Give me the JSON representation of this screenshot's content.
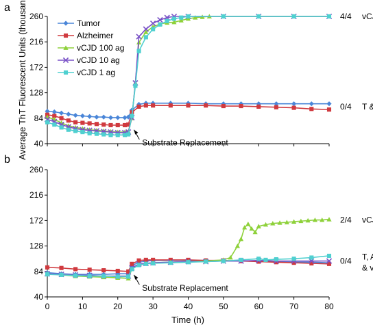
{
  "chart_data": [
    {
      "panel": "a",
      "type": "line",
      "ylabel": "Average ThT Fluorescent Units (thousands)",
      "xlabel": "",
      "xlim": [
        0,
        80
      ],
      "ylim": [
        40,
        260
      ],
      "xticks": [],
      "yticks": [
        40,
        84,
        128,
        172,
        216,
        260
      ],
      "grid": false,
      "legend": "top-left",
      "annotation": "Substrate Replacement",
      "annotation_x": 24,
      "right_labels": [
        {
          "text": "4/4",
          "group": "vCJD",
          "y": 260
        },
        {
          "text": "0/4",
          "group": "T & AD",
          "y": 104
        }
      ],
      "series": [
        {
          "name": "Tumor",
          "color": "#4a86d8",
          "marker": "diamond",
          "points": [
            [
              0,
              96
            ],
            [
              2,
              95
            ],
            [
              4,
              93
            ],
            [
              6,
              91
            ],
            [
              8,
              89
            ],
            [
              10,
              88
            ],
            [
              12,
              87
            ],
            [
              14,
              86
            ],
            [
              16,
              86
            ],
            [
              18,
              85
            ],
            [
              20,
              85
            ],
            [
              22,
              85
            ],
            [
              23,
              86
            ],
            [
              24,
              98
            ],
            [
              26,
              108
            ],
            [
              28,
              110
            ],
            [
              30,
              110
            ],
            [
              35,
              110
            ],
            [
              40,
              110
            ],
            [
              45,
              109
            ],
            [
              50,
              109
            ],
            [
              55,
              109
            ],
            [
              60,
              109
            ],
            [
              65,
              109
            ],
            [
              70,
              109
            ],
            [
              75,
              109
            ],
            [
              80,
              109
            ]
          ]
        },
        {
          "name": "Alzheimer",
          "color": "#d03a3f",
          "marker": "square",
          "points": [
            [
              0,
              90
            ],
            [
              2,
              88
            ],
            [
              4,
              84
            ],
            [
              6,
              80
            ],
            [
              8,
              77
            ],
            [
              10,
              76
            ],
            [
              12,
              75
            ],
            [
              14,
              74
            ],
            [
              16,
              73
            ],
            [
              18,
              72
            ],
            [
              20,
              72
            ],
            [
              22,
              72
            ],
            [
              23,
              73
            ],
            [
              24,
              94
            ],
            [
              26,
              104
            ],
            [
              28,
              106
            ],
            [
              30,
              106
            ],
            [
              35,
              106
            ],
            [
              40,
              106
            ],
            [
              45,
              106
            ],
            [
              50,
              105
            ],
            [
              55,
              105
            ],
            [
              60,
              104
            ],
            [
              65,
              103
            ],
            [
              70,
              102
            ],
            [
              75,
              100
            ],
            [
              80,
              99
            ]
          ]
        },
        {
          "name": "vCJD 100 ag",
          "color": "#8ed13a",
          "marker": "triangle",
          "points": [
            [
              0,
              86
            ],
            [
              2,
              82
            ],
            [
              4,
              76
            ],
            [
              6,
              71
            ],
            [
              8,
              68
            ],
            [
              10,
              66
            ],
            [
              12,
              64
            ],
            [
              14,
              63
            ],
            [
              16,
              62
            ],
            [
              18,
              61
            ],
            [
              20,
              60
            ],
            [
              22,
              60
            ],
            [
              23,
              61
            ],
            [
              24,
              84
            ],
            [
              25,
              145
            ],
            [
              26,
              215
            ],
            [
              28,
              233
            ],
            [
              30,
              242
            ],
            [
              32,
              247
            ],
            [
              34,
              249
            ],
            [
              36,
              250
            ],
            [
              38,
              253
            ],
            [
              40,
              256
            ],
            [
              42,
              258
            ],
            [
              44,
              259
            ],
            [
              46,
              260
            ],
            [
              50,
              260
            ],
            [
              60,
              260
            ],
            [
              70,
              260
            ],
            [
              80,
              260
            ]
          ]
        },
        {
          "name": "vCJD 10 ag",
          "color": "#7a52c7",
          "marker": "x",
          "points": [
            [
              0,
              82
            ],
            [
              2,
              78
            ],
            [
              4,
              73
            ],
            [
              6,
              69
            ],
            [
              8,
              66
            ],
            [
              10,
              64
            ],
            [
              12,
              63
            ],
            [
              14,
              62
            ],
            [
              16,
              61
            ],
            [
              18,
              60
            ],
            [
              20,
              59
            ],
            [
              22,
              59
            ],
            [
              23,
              60
            ],
            [
              24,
              85
            ],
            [
              25,
              145
            ],
            [
              26,
              225
            ],
            [
              28,
              238
            ],
            [
              30,
              248
            ],
            [
              32,
              254
            ],
            [
              34,
              258
            ],
            [
              36,
              260
            ],
            [
              40,
              260
            ],
            [
              50,
              260
            ],
            [
              60,
              260
            ],
            [
              70,
              260
            ],
            [
              80,
              260
            ]
          ]
        },
        {
          "name": "vCJD 1 ag",
          "color": "#4fd0d0",
          "marker": "square",
          "points": [
            [
              0,
              77
            ],
            [
              2,
              73
            ],
            [
              4,
              68
            ],
            [
              6,
              64
            ],
            [
              8,
              62
            ],
            [
              10,
              60
            ],
            [
              12,
              58
            ],
            [
              14,
              57
            ],
            [
              16,
              56
            ],
            [
              18,
              55
            ],
            [
              20,
              55
            ],
            [
              22,
              55
            ],
            [
              23,
              56
            ],
            [
              24,
              88
            ],
            [
              25,
              140
            ],
            [
              26,
              200
            ],
            [
              28,
              224
            ],
            [
              30,
              238
            ],
            [
              32,
              246
            ],
            [
              34,
              252
            ],
            [
              36,
              256
            ],
            [
              38,
              258
            ],
            [
              40,
              260
            ],
            [
              50,
              260
            ],
            [
              60,
              260
            ],
            [
              70,
              260
            ],
            [
              80,
              260
            ]
          ]
        }
      ]
    },
    {
      "panel": "b",
      "type": "line",
      "xlabel": "Time (h)",
      "ylabel": "",
      "xlim": [
        0,
        80
      ],
      "ylim": [
        40,
        260
      ],
      "xticks": [
        0,
        10,
        20,
        30,
        40,
        50,
        60,
        70,
        80
      ],
      "yticks": [
        40,
        84,
        128,
        172,
        216,
        260
      ],
      "grid": false,
      "annotation": "Substrate Replacement",
      "annotation_x": 24,
      "right_labels": [
        {
          "text": "2/4",
          "group": "vCJD",
          "y": 173
        },
        {
          "text": "0/4",
          "group": "T, AD, & vCJD",
          "y": 102
        }
      ],
      "series": [
        {
          "name": "Tumor",
          "color": "#4a86d8",
          "marker": "diamond",
          "points": [
            [
              0,
              82
            ],
            [
              4,
              80
            ],
            [
              8,
              79
            ],
            [
              12,
              79
            ],
            [
              16,
              79
            ],
            [
              20,
              80
            ],
            [
              23,
              80
            ],
            [
              24,
              94
            ],
            [
              26,
              100
            ],
            [
              28,
              102
            ],
            [
              30,
              103
            ],
            [
              35,
              103
            ],
            [
              40,
              103
            ],
            [
              45,
              103
            ],
            [
              50,
              102
            ],
            [
              55,
              102
            ],
            [
              60,
              102
            ],
            [
              65,
              101
            ],
            [
              70,
              100
            ],
            [
              75,
              100
            ],
            [
              80,
              99
            ]
          ]
        },
        {
          "name": "Alzheimer",
          "color": "#d03a3f",
          "marker": "square",
          "points": [
            [
              0,
              91
            ],
            [
              4,
              90
            ],
            [
              8,
              88
            ],
            [
              12,
              87
            ],
            [
              16,
              86
            ],
            [
              20,
              85
            ],
            [
              23,
              84
            ],
            [
              24,
              97
            ],
            [
              26,
              103
            ],
            [
              28,
              104
            ],
            [
              30,
              104
            ],
            [
              35,
              104
            ],
            [
              40,
              104
            ],
            [
              45,
              103
            ],
            [
              50,
              103
            ],
            [
              55,
              102
            ],
            [
              60,
              101
            ],
            [
              65,
              100
            ],
            [
              70,
              99
            ],
            [
              75,
              98
            ],
            [
              80,
              97
            ]
          ]
        },
        {
          "name": "vCJD 100 ag",
          "color": "#8ed13a",
          "marker": "triangle",
          "points": [
            [
              0,
              80
            ],
            [
              4,
              78
            ],
            [
              8,
              76
            ],
            [
              12,
              75
            ],
            [
              16,
              74
            ],
            [
              20,
              73
            ],
            [
              23,
              72
            ],
            [
              24,
              88
            ],
            [
              26,
              96
            ],
            [
              28,
              98
            ],
            [
              30,
              99
            ],
            [
              35,
              100
            ],
            [
              40,
              101
            ],
            [
              45,
              102
            ],
            [
              50,
              104
            ],
            [
              52,
              108
            ],
            [
              54,
              128
            ],
            [
              55,
              140
            ],
            [
              56,
              160
            ],
            [
              57,
              166
            ],
            [
              58,
              158
            ],
            [
              59,
              152
            ],
            [
              60,
              162
            ],
            [
              62,
              165
            ],
            [
              64,
              167
            ],
            [
              66,
              168
            ],
            [
              68,
              169
            ],
            [
              70,
              170
            ],
            [
              72,
              171
            ],
            [
              74,
              172
            ],
            [
              76,
              173
            ],
            [
              78,
              173
            ],
            [
              80,
              174
            ]
          ]
        },
        {
          "name": "vCJD 10 ag",
          "color": "#7a52c7",
          "marker": "x",
          "points": [
            [
              0,
              80
            ],
            [
              4,
              79
            ],
            [
              8,
              78
            ],
            [
              12,
              77
            ],
            [
              16,
              76
            ],
            [
              20,
              76
            ],
            [
              23,
              76
            ],
            [
              24,
              90
            ],
            [
              26,
              97
            ],
            [
              28,
              98
            ],
            [
              30,
              99
            ],
            [
              35,
              100
            ],
            [
              40,
              101
            ],
            [
              45,
              101
            ],
            [
              50,
              102
            ],
            [
              55,
              102
            ],
            [
              60,
              103
            ],
            [
              65,
              102
            ],
            [
              70,
              102
            ],
            [
              75,
              102
            ],
            [
              80,
              102
            ]
          ]
        },
        {
          "name": "vCJD 1 ag",
          "color": "#4fd0d0",
          "marker": "square",
          "points": [
            [
              0,
              79
            ],
            [
              4,
              78
            ],
            [
              8,
              77
            ],
            [
              12,
              76
            ],
            [
              16,
              76
            ],
            [
              20,
              75
            ],
            [
              23,
              75
            ],
            [
              24,
              88
            ],
            [
              26,
              95
            ],
            [
              28,
              97
            ],
            [
              30,
              98
            ],
            [
              35,
              99
            ],
            [
              40,
              100
            ],
            [
              45,
              101
            ],
            [
              50,
              102
            ],
            [
              55,
              104
            ],
            [
              60,
              106
            ],
            [
              62,
              104
            ],
            [
              65,
              105
            ],
            [
              70,
              106
            ],
            [
              75,
              108
            ],
            [
              80,
              111
            ]
          ]
        }
      ]
    }
  ]
}
